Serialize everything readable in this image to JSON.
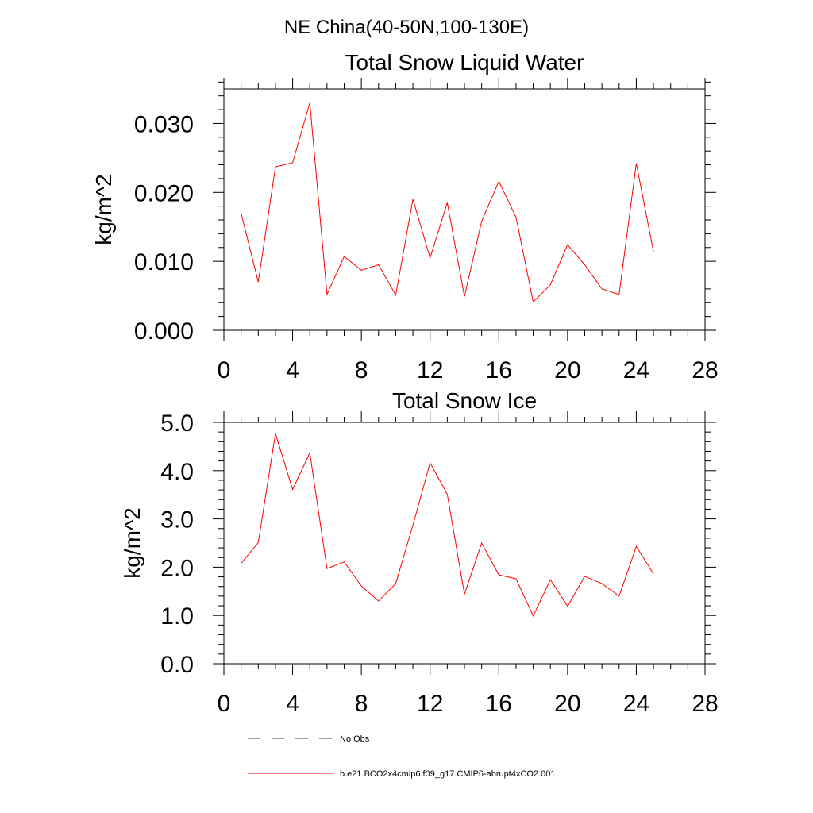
{
  "figure": {
    "suptitle": "NE China(40-50N,100-130E)"
  },
  "legend": {
    "items": [
      {
        "label": "No Obs",
        "color": "#3c3c6e",
        "dashed": true
      },
      {
        "label": "b.e21.BCO2x4cmip6.f09_g17.CMIP6-abrupt4xCO2.001",
        "color": "#ff0000",
        "dashed": false
      }
    ]
  },
  "chart_data": [
    {
      "type": "line",
      "title": "Total Snow Liquid Water",
      "xlabel": "",
      "ylabel": "kg/m^2",
      "xlim": [
        0,
        28
      ],
      "ylim": [
        0,
        0.035
      ],
      "xticks": [
        0,
        4,
        8,
        12,
        16,
        20,
        24,
        28
      ],
      "xticklabels": [
        "0",
        "4",
        "8",
        "12",
        "16",
        "20",
        "24",
        "28"
      ],
      "yticks": [
        0,
        0.01,
        0.02,
        0.03
      ],
      "yticklabels": [
        "0.000",
        "0.010",
        "0.020",
        "0.030"
      ],
      "grid": false,
      "series": [
        {
          "name": "b.e21.BCO2x4cmip6.f09_g17.CMIP6-abrupt4xCO2.001",
          "color": "#ff0000",
          "x": [
            1,
            2,
            3,
            4,
            5,
            6,
            7,
            8,
            9,
            10,
            11,
            12,
            13,
            14,
            15,
            16,
            17,
            18,
            19,
            20,
            21,
            22,
            23,
            24,
            25
          ],
          "values": [
            0.017,
            0.007,
            0.0237,
            0.0243,
            0.033,
            0.0052,
            0.0107,
            0.0087,
            0.0095,
            0.0051,
            0.019,
            0.0105,
            0.0185,
            0.0049,
            0.0158,
            0.0216,
            0.0164,
            0.0041,
            0.0066,
            0.0124,
            0.0095,
            0.006,
            0.0052,
            0.0242,
            0.0114
          ]
        }
      ]
    },
    {
      "type": "line",
      "title": "Total Snow Ice",
      "xlabel": "",
      "ylabel": "kg/m^2",
      "xlim": [
        0,
        28
      ],
      "ylim": [
        0,
        5.0
      ],
      "xticks": [
        0,
        4,
        8,
        12,
        16,
        20,
        24,
        28
      ],
      "xticklabels": [
        "0",
        "4",
        "8",
        "12",
        "16",
        "20",
        "24",
        "28"
      ],
      "yticks": [
        0,
        1,
        2,
        3,
        4,
        5
      ],
      "yticklabels": [
        "0.0",
        "1.0",
        "2.0",
        "3.0",
        "4.0",
        "5.0"
      ],
      "grid": false,
      "series": [
        {
          "name": "b.e21.BCO2x4cmip6.f09_g17.CMIP6-abrupt4xCO2.001",
          "color": "#ff0000",
          "x": [
            1,
            2,
            3,
            4,
            5,
            6,
            7,
            8,
            9,
            10,
            11,
            12,
            13,
            14,
            15,
            16,
            17,
            18,
            19,
            20,
            21,
            22,
            23,
            24,
            25
          ],
          "values": [
            2.08,
            2.51,
            4.77,
            3.61,
            4.37,
            1.97,
            2.11,
            1.61,
            1.3,
            1.66,
            2.87,
            4.16,
            3.51,
            1.44,
            2.5,
            1.84,
            1.76,
            0.99,
            1.74,
            1.19,
            1.81,
            1.66,
            1.4,
            2.43,
            1.86
          ]
        }
      ]
    }
  ]
}
